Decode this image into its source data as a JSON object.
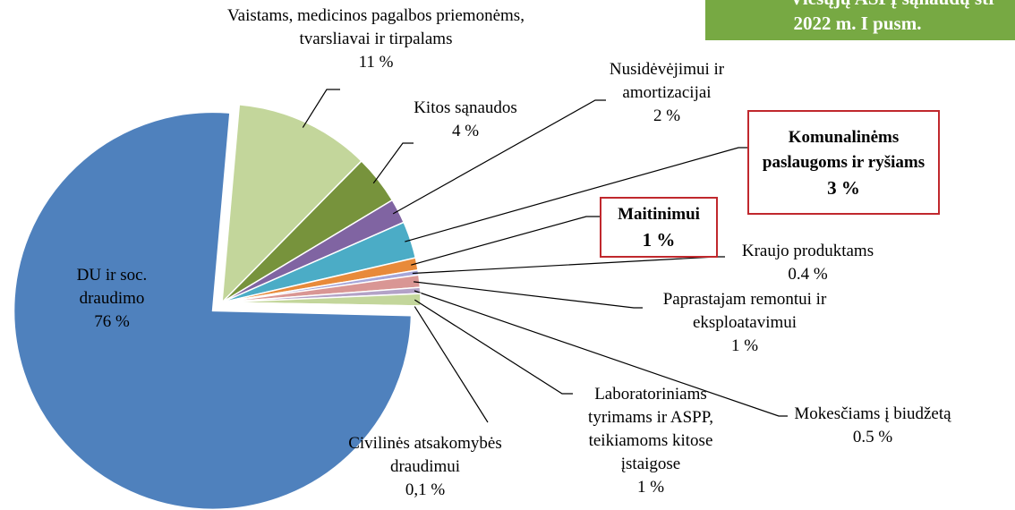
{
  "chart_data": {
    "type": "pie",
    "title": "Viešųjų ASPĮ sąnaudų str",
    "subtitle": "2022 m. I pusm.",
    "categories": [
      "Vaistams, medicinos pagalbos priemonėms, tvarsliavai ir tirpalams",
      "Kitos sąnaudos",
      "Nusidėvėjimui ir amortizacijai",
      "Komunalinėms paslaugoms ir ryšiams",
      "Maitinimui",
      "Kraujo produktams",
      "Paprastajam remontui ir eksploatavimui",
      "Mokesčiams į biudžetą",
      "Laboratoriniams tyrimams ir ASPP, teikiamoms kitose įstaigose",
      "Civilinės atsakomybės draudimui",
      "DU ir soc. draudimo"
    ],
    "values": [
      11,
      4,
      2,
      3,
      1,
      0.4,
      1,
      0.5,
      1,
      0.1,
      76
    ],
    "value_labels": [
      "11 %",
      "4 %",
      "2 %",
      "3 %",
      "1 %",
      "0.4 %",
      "1 %",
      "0.5 %",
      "1 %",
      "0,1 %",
      "76 %"
    ],
    "colors": [
      "#c3d69b",
      "#77933c",
      "#8064a2",
      "#4bacc6",
      "#e88a3a",
      "#a6a6d9",
      "#d99694",
      "#b3a2c7",
      "#c3d69b",
      "#95b3d7",
      "#4f81bd"
    ]
  }
}
